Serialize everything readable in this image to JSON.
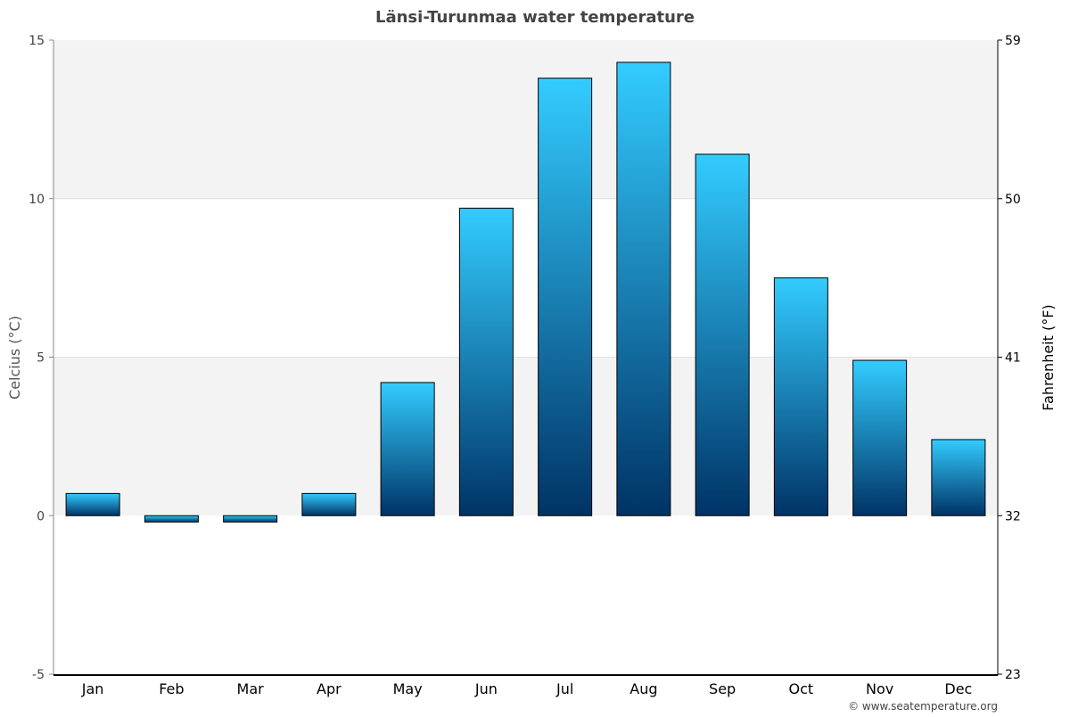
{
  "chart_data": {
    "type": "bar",
    "title": "Länsi-Turunmaa water temperature",
    "ylabel": "Celcius (°C)",
    "ylabel_right": "Fahrenheit (°F)",
    "categories": [
      "Jan",
      "Feb",
      "Mar",
      "Apr",
      "May",
      "Jun",
      "Jul",
      "Aug",
      "Sep",
      "Oct",
      "Nov",
      "Dec"
    ],
    "values": [
      0.7,
      -0.2,
      -0.2,
      0.7,
      4.2,
      9.7,
      13.8,
      14.3,
      11.4,
      7.5,
      4.9,
      2.4
    ],
    "ylim": [
      -5,
      15
    ],
    "yticks": [
      "-5",
      "0",
      "5",
      "10",
      "15"
    ],
    "yticks_right": [
      "23",
      "32",
      "41",
      "50",
      "59"
    ],
    "grid": true,
    "colors": {
      "bar_top": "#33ccff",
      "bar_bottom": "#003366",
      "band": "#f3f3f3"
    }
  },
  "credit": "© www.seatemperature.org"
}
